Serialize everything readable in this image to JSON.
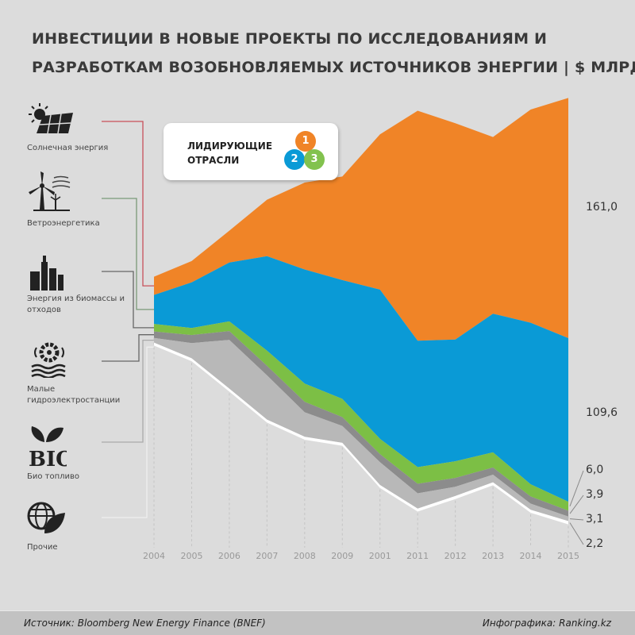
{
  "title": {
    "line1": "ИНВЕСТИЦИИ В НОВЫЕ ПРОЕКТЫ ПО ИССЛЕДОВАНИЯМ И",
    "line2": "РАЗРАБОТКАМ  ВОЗОБНОВЛЯЕМЫХ ИСТОЧНИКОВ ЭНЕРГИИ | $ МЛРД"
  },
  "legend_box": {
    "line1": "ЛИДИРУЮЩИЕ",
    "line2": "ОТРАСЛИ",
    "badges": [
      "1",
      "2",
      "3"
    ]
  },
  "categories_panel": [
    {
      "label": "Солнечная энергия",
      "icon": "solar-panel-icon"
    },
    {
      "label": "Ветроэнергетика",
      "icon": "wind-turbine-icon"
    },
    {
      "label": "Энергия из биомассы и отходов",
      "icon": "factory-icon"
    },
    {
      "label": "Малые гидроэлектростанции",
      "icon": "hydro-wheel-icon"
    },
    {
      "label": "Био топливо",
      "icon": "bio-leaf-icon"
    },
    {
      "label": "Прочие",
      "icon": "globe-leaf-icon"
    }
  ],
  "chart_data": {
    "type": "area",
    "layout": "streamgraph-centered",
    "categories": [
      "2004",
      "2005",
      "2006",
      "2007",
      "2008",
      "2009",
      "2001",
      "2011",
      "2012",
      "2013",
      "2014",
      "2015"
    ],
    "series": [
      {
        "name": "Солнечная энергия",
        "color": "#f08427",
        "values": [
          12.2,
          14.3,
          21.4,
          37.8,
          58.2,
          69.4,
          104.1,
          154.1,
          144.9,
          118.4,
          142.9,
          161.0
        ]
      },
      {
        "name": "Ветроэнергетика",
        "color": "#0a9ad6",
        "values": [
          19.4,
          30.6,
          39.4,
          63.3,
          76.5,
          79.6,
          100.0,
          84.7,
          81.6,
          92.9,
          108.2,
          109.6
        ]
      },
      {
        "name": "Энергия из биомассы и отходов",
        "color": "#7cbf45",
        "values": [
          5.1,
          4.7,
          6.5,
          10.2,
          12.2,
          12.2,
          10.2,
          11.2,
          11.2,
          10.2,
          8.2,
          6.0
        ]
      },
      {
        "name": "Малые гидроэлектростанции",
        "color": "#8c8c8c",
        "values": [
          4.3,
          5.4,
          5.9,
          6.4,
          7.0,
          5.9,
          5.4,
          6.4,
          5.9,
          4.8,
          4.8,
          3.9
        ]
      },
      {
        "name": "Био топливо",
        "color": "#b8b8b8",
        "values": [
          3.1,
          10.2,
          32.7,
          29.6,
          16.4,
          11.3,
          15.3,
          10.2,
          6.2,
          5.1,
          4.1,
          3.1
        ]
      },
      {
        "name": "Прочие",
        "color": "#ffffff",
        "values": [
          2.0,
          2.0,
          2.0,
          2.0,
          2.0,
          2.0,
          2.0,
          2.0,
          2.0,
          2.0,
          2.0,
          2.2
        ]
      }
    ],
    "end_labels": [
      "161,0",
      "109,6",
      "6,0",
      "3,9",
      "3,1",
      "2,2"
    ],
    "grid": false,
    "legend": "left"
  },
  "footer": {
    "source": "Источник: Bloomberg New Energy Finance (BNEF)",
    "credit": "Инфографика: Ranking.kz"
  }
}
